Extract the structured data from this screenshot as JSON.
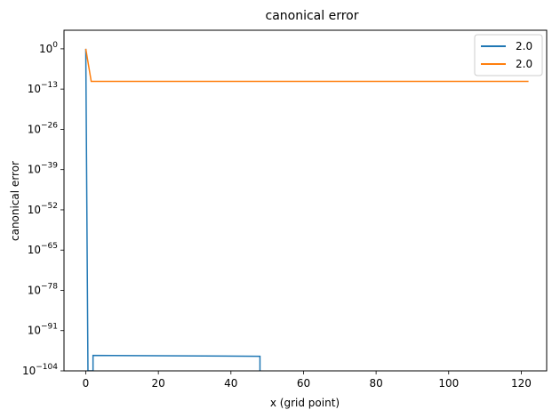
{
  "chart_data": {
    "type": "line",
    "title": "canonical error",
    "xlabel": "x (grid point)",
    "ylabel": "canonical error",
    "yscale": "log",
    "xlim": [
      -6,
      127
    ],
    "ylim_exp": [
      -104,
      6
    ],
    "xticks": [
      0,
      20,
      40,
      60,
      80,
      100,
      120
    ],
    "yticks_exp": [
      0,
      -13,
      -26,
      -39,
      -52,
      -65,
      -78,
      -91,
      -104
    ],
    "grid": false,
    "legend_position": "top-right",
    "series": [
      {
        "name": "2.0",
        "color": "#1f77b4",
        "points_exp": [
          [
            0,
            0
          ],
          [
            0.6,
            -104
          ],
          [
            2,
            -104
          ],
          [
            2,
            -99
          ],
          [
            48,
            -99.3
          ],
          [
            48,
            -104
          ]
        ]
      },
      {
        "name": "2.0",
        "color": "#ff7f0e",
        "points_exp": [
          [
            0,
            0
          ],
          [
            1.5,
            -10.5
          ],
          [
            122,
            -10.5
          ]
        ]
      }
    ]
  }
}
